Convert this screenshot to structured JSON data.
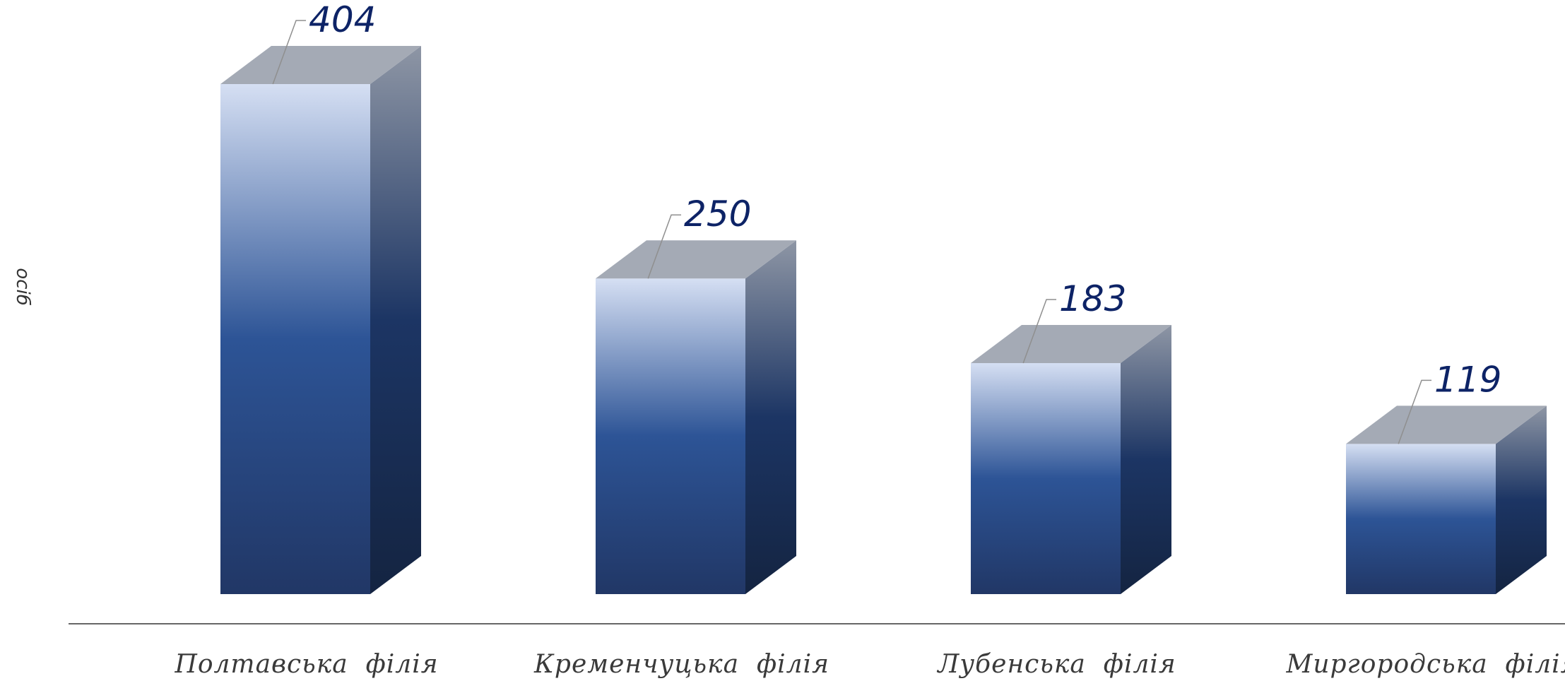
{
  "chart_data": {
    "type": "bar",
    "categories": [
      "Полтавська  філія",
      "Кременчуцька  філія",
      "Лубенська  філія",
      "Миргородська  філія"
    ],
    "values": [
      404,
      250,
      183,
      119
    ],
    "value_labels": [
      "404",
      "250",
      "183",
      "119"
    ],
    "ylabel": "осіб",
    "ylim": [
      0,
      404
    ],
    "grid": false,
    "legend": "none",
    "colors": {
      "front_top": "#d5dff3",
      "front_mid": "#2d5496",
      "front_bottom": "#213766",
      "side_top": "#8e96a5",
      "side_mid": "#1c3564",
      "side_bottom": "#142441",
      "top_face": "#a4aab5",
      "axis": "#666666",
      "leader": "#8f8f8f"
    }
  }
}
